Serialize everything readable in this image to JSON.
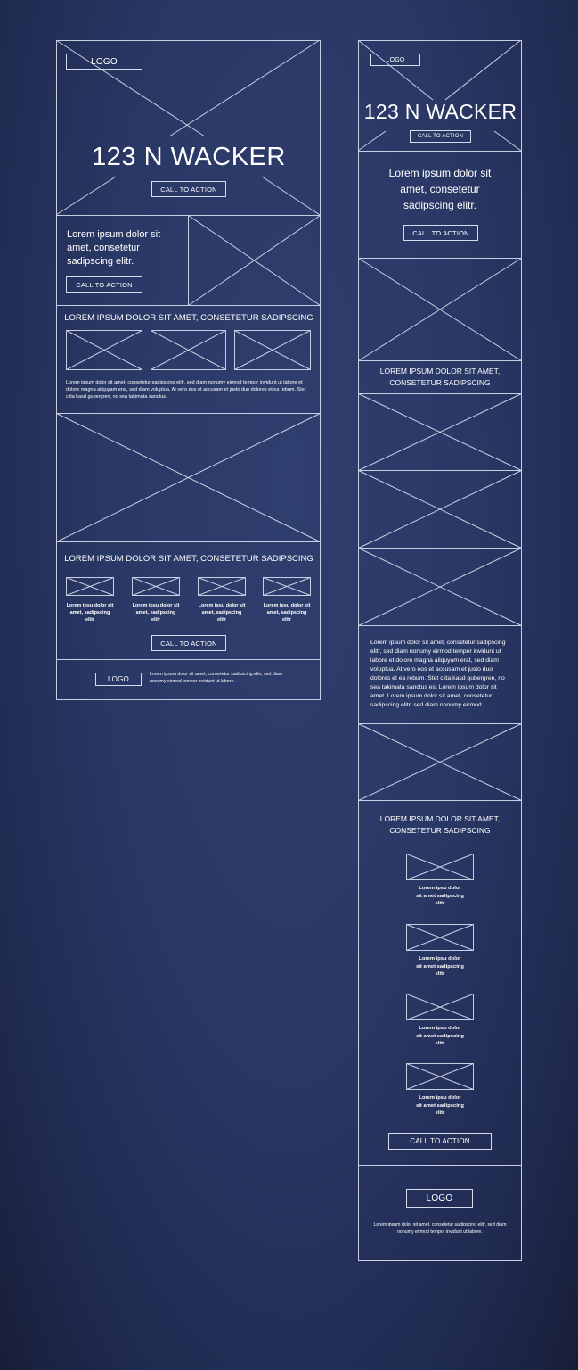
{
  "desktop": {
    "logo": "LOGO",
    "hero_title": "123 N WACKER",
    "hero_cta": "CALL TO ACTION",
    "intro_text": "Lorem ipsum dolor sit amet, consetetur sadipscing elitr.",
    "intro_cta": "CALL TO ACTION",
    "section1_heading": "LOREM IPSUM DOLOR SIT AMET, CONSETETUR SADIPSCING",
    "section1_paragraph": "Lorem ipsum dolor sit amet, consetetur sadipscing elitr, sed diam nonumy eirmod tempor invidunt ut labore et dolore magna aliquyam erat, sed diam voluptua. At vero eos et accusam et justo duo dolores et ea rebum. Stet clita kasd gubergren, no sea takimata sanctus.",
    "section2_heading": "LOREM IPSUM DOLOR SIT AMET, CONSETETUR SADIPSCING",
    "feature_captions": [
      "Lorem ipsu dolor sit amet, sadipscing elitr",
      "Lorem ipsu dolor sit amet, sadipscing elitr",
      "Lorem ipsu dolor sit amet, sadipscing elitr",
      "Lorem ipsu dolor sit amet, sadipscing elitr"
    ],
    "section2_cta": "CALL TO ACTION",
    "footer_logo": "LOGO",
    "footer_text": "Lorem ipsum dolor sit amet, consetetur sadipscing elitr, sed diam nonumy eirmod tempor invidunt ut labore."
  },
  "mobile": {
    "logo": "LOGO",
    "hero_title": "123 N WACKER",
    "hero_cta": "CALL TO ACTION",
    "intro_text": "Lorem ipsum dolor sit amet, consetetur sadipscing elitr.",
    "intro_cta": "CALL TO ACTION",
    "section1_heading": "LOREM IPSUM DOLOR SIT AMET, CONSETETUR SADIPSCING",
    "paragraph": "Lorem ipsum dolor sit amet, consetetur sadipscing elitr, sed diam nonumy eirmod tempor invidunt ut labore et dolore magna aliquyam erat, sed diam voluptua. At vero eos et accusam et justo duo dolores et ea rebum. Stet clita kasd gubergren, no sea takimata sanctus est Lorem ipsum dolor sit amet. Lorem ipsum dolor sit amet, consetetur sadipscing elitr, sed diam nonumy eirmod.",
    "section2_heading": "LOREM IPSUM DOLOR SIT AMET, CONSETETUR SADIPSCING",
    "feature_captions": [
      "Lorem ipsu dolor sit amet sadipscing elitr",
      "Lorem ipsu dolor sit amet sadipscing elitr",
      "Lorem ipsu dolor sit amet sadipscing elitr",
      "Lorem ipsu dolor sit amet sadipscing elitr"
    ],
    "section2_cta": "CALL TO ACTION",
    "footer_logo": "LOGO",
    "footer_text": "Lorem ipsum dolor sit amet, consetetur sadipscing elitr, sed diam nonumy eirmod tempor invidunt ut labore."
  },
  "colors": {
    "background": "#2a3866",
    "wire": "#c9cfe3",
    "text": "#ffffff"
  }
}
